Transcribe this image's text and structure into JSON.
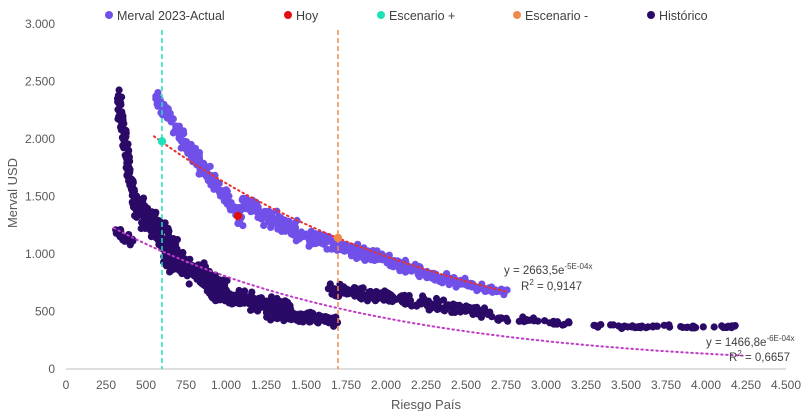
{
  "chart_data": {
    "type": "scatter",
    "title": "",
    "xlabel": "Riesgo País",
    "ylabel": "Merval USD",
    "xlim": [
      0,
      4500
    ],
    "ylim": [
      0,
      3000
    ],
    "x_ticks": [
      0,
      250,
      500,
      750,
      1000,
      1250,
      1500,
      1750,
      2000,
      2250,
      2500,
      2750,
      3000,
      3250,
      3500,
      3750,
      4000,
      4250,
      4500
    ],
    "y_ticks": [
      0,
      500,
      1000,
      1500,
      2000,
      2500,
      3000
    ],
    "x_tick_labels": [
      "0",
      "250",
      "500",
      "750",
      "1.000",
      "1.250",
      "1.500",
      "1.750",
      "2.000",
      "2.250",
      "2.500",
      "2.750",
      "3.000",
      "3.250",
      "3.500",
      "3.750",
      "4.000",
      "4.250",
      "4.500"
    ],
    "y_tick_labels": [
      "0",
      "500",
      "1.000",
      "1.500",
      "2.000",
      "2.500",
      "3.000"
    ],
    "grid": false,
    "legend_position": "top",
    "series": [
      {
        "name": "Merval 2023-Actual",
        "color": "#7050E8",
        "clusters": [
          {
            "x_from": 560,
            "x_to": 800,
            "y_start": 2380,
            "y_end": 1850,
            "spread": 110,
            "count": 70
          },
          {
            "x_from": 800,
            "x_to": 1100,
            "y_start": 1850,
            "y_end": 1300,
            "spread": 120,
            "count": 90
          },
          {
            "x_from": 1100,
            "x_to": 1500,
            "y_start": 1450,
            "y_end": 1150,
            "spread": 110,
            "count": 110
          },
          {
            "x_from": 1500,
            "x_to": 2000,
            "y_start": 1150,
            "y_end": 950,
            "spread": 90,
            "count": 110
          },
          {
            "x_from": 2000,
            "x_to": 2450,
            "y_start": 950,
            "y_end": 740,
            "spread": 80,
            "count": 100
          },
          {
            "x_from": 2450,
            "x_to": 2750,
            "y_start": 760,
            "y_end": 660,
            "spread": 60,
            "count": 45
          }
        ]
      },
      {
        "name": "Hoy",
        "color": "#E01010",
        "points": [
          {
            "x": 1075,
            "y": 1330
          }
        ]
      },
      {
        "name": "Escenario +",
        "color": "#1FE0B8",
        "points": [
          {
            "x": 600,
            "y": 1980
          }
        ],
        "vline_x": 600
      },
      {
        "name": "Escenario -",
        "color": "#F08A4B",
        "points": [
          {
            "x": 1700,
            "y": 1140
          }
        ],
        "vline_x": 1700
      },
      {
        "name": "Histórico",
        "color": "#2A0A66",
        "clusters": [
          {
            "x_from": 330,
            "x_to": 420,
            "y_start": 2330,
            "y_end": 1500,
            "spread": 160,
            "count": 110
          },
          {
            "x_from": 310,
            "x_to": 420,
            "y_start": 1200,
            "y_end": 1100,
            "spread": 60,
            "count": 20
          },
          {
            "x_from": 420,
            "x_to": 700,
            "y_start": 1450,
            "y_end": 1000,
            "spread": 190,
            "count": 210
          },
          {
            "x_from": 600,
            "x_to": 1000,
            "y_start": 1000,
            "y_end": 700,
            "spread": 150,
            "count": 200
          },
          {
            "x_from": 900,
            "x_to": 1400,
            "y_start": 650,
            "y_end": 520,
            "spread": 90,
            "count": 190
          },
          {
            "x_from": 1250,
            "x_to": 1700,
            "y_start": 480,
            "y_end": 420,
            "spread": 60,
            "count": 140
          },
          {
            "x_from": 1650,
            "x_to": 2150,
            "y_start": 690,
            "y_end": 600,
            "spread": 80,
            "count": 120
          },
          {
            "x_from": 2100,
            "x_to": 2650,
            "y_start": 600,
            "y_end": 480,
            "spread": 70,
            "count": 110
          },
          {
            "x_from": 2650,
            "x_to": 3150,
            "y_start": 450,
            "y_end": 400,
            "spread": 40,
            "count": 30
          },
          {
            "x_from": 3300,
            "x_to": 3800,
            "y_start": 370,
            "y_end": 370,
            "spread": 25,
            "count": 30
          },
          {
            "x_from": 3800,
            "x_to": 4250,
            "y_start": 360,
            "y_end": 370,
            "spread": 25,
            "count": 25
          }
        ]
      }
    ],
    "trendlines": [
      {
        "series": "Merval 2023-Actual",
        "type": "exponential",
        "a": 2663.5,
        "b": -0.0005,
        "x_from": 550,
        "x_to": 2750,
        "color": "#E8302A",
        "equation_base": "y = 2663,5e",
        "equation_exp": "-5E-04x",
        "r2_text": "0,9147"
      },
      {
        "series": "Histórico",
        "type": "exponential",
        "a": 1466.8,
        "b": -0.0006,
        "x_from": 300,
        "x_to": 4250,
        "color": "#C03AC8",
        "equation_base": "y = 1466,8e",
        "equation_exp": "-6E-04x",
        "r2_text": "0,6657"
      }
    ]
  }
}
